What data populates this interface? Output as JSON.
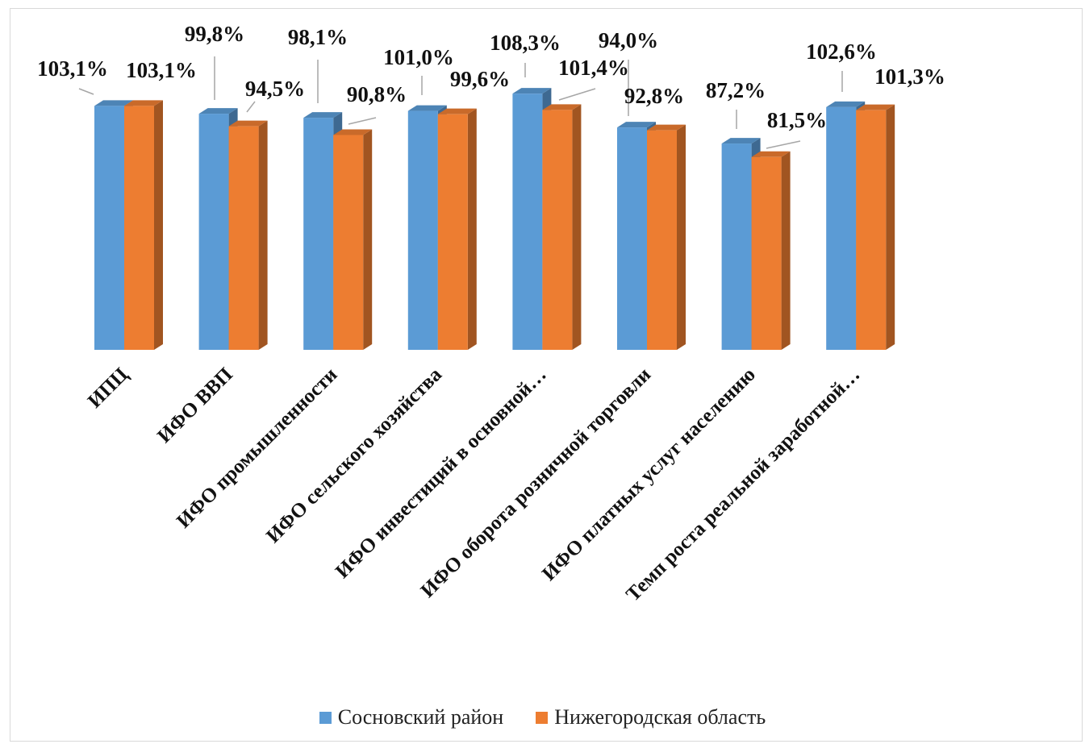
{
  "chart_data": {
    "type": "bar",
    "style": "3d-clustered-column",
    "categories": [
      "ИПЦ",
      "ИФО ВВП",
      "ИФО промышленности",
      "ИФО сельского хозяйства",
      "ИФО инвестиций  в основной…",
      "ИФО оборота розничной  торговли",
      "ИФО платных услуг  населению",
      "Темп роста реальной  заработной…"
    ],
    "series": [
      {
        "name": "Сосновский район",
        "color": "#5b9bd5",
        "values": [
          103.1,
          99.8,
          98.1,
          101.0,
          108.3,
          94.0,
          87.2,
          102.6
        ],
        "labels": [
          "103,1%",
          "99,8%",
          "98,1%",
          "101,0%",
          "108,3%",
          "94,0%",
          "87,2%",
          "102,6%"
        ]
      },
      {
        "name": "Нижегородская область",
        "color": "#ed7d31",
        "values": [
          103.1,
          94.5,
          90.8,
          99.6,
          101.4,
          92.8,
          81.5,
          101.3
        ],
        "labels": [
          "103,1%",
          "94,5%",
          "90,8%",
          "99,6%",
          "101,4%",
          "92,8%",
          "81,5%",
          "101,3%"
        ]
      }
    ],
    "axis": {
      "visible": false
    },
    "gridlines": false,
    "legend_position": "bottom"
  }
}
